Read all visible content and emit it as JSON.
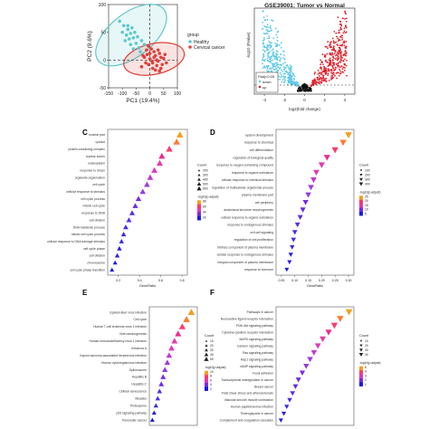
{
  "panels": {
    "A": {
      "label": ""
    },
    "B": {
      "label": ""
    },
    "C": {
      "label": "C"
    },
    "D": {
      "label": "D"
    },
    "E": {
      "label": "E"
    },
    "F": {
      "label": "F"
    }
  },
  "chart_data": [
    {
      "id": "pca",
      "type": "scatter",
      "title": "",
      "xlabel": "PC1 (19.4%)",
      "ylabel": "PC2 (9.6%)",
      "xlim": [
        -150,
        100
      ],
      "ylim": [
        -50,
        100
      ],
      "xticks": [
        -150,
        -100,
        -50,
        0,
        50,
        100
      ],
      "yticks": [
        -50,
        0,
        50,
        100
      ],
      "legend": {
        "title": "group",
        "position": "right",
        "entries": [
          {
            "name": "Healthy",
            "color": "#5ec8cc"
          },
          {
            "name": "Cervical cancer",
            "color": "#e0403a"
          }
        ]
      },
      "series": [
        {
          "name": "Healthy",
          "color": "#5ec8cc",
          "points": [
            [
              -110,
              70
            ],
            [
              -95,
              62
            ],
            [
              -80,
              55
            ],
            [
              -70,
              48
            ],
            [
              -60,
              40
            ],
            [
              -85,
              45
            ],
            [
              -100,
              50
            ],
            [
              -75,
              38
            ],
            [
              -65,
              58
            ],
            [
              -55,
              50
            ],
            [
              -90,
              35
            ],
            [
              -50,
              30
            ],
            [
              -45,
              42
            ],
            [
              -70,
              28
            ],
            [
              -40,
              22
            ],
            [
              -60,
              20
            ],
            [
              -30,
              35
            ],
            [
              -80,
              62
            ],
            [
              -35,
              15
            ],
            [
              -20,
              28
            ]
          ]
        },
        {
          "name": "Cervical cancer",
          "color": "#e0403a",
          "points": [
            [
              -20,
              5
            ],
            [
              -10,
              10
            ],
            [
              0,
              2
            ],
            [
              10,
              -5
            ],
            [
              20,
              8
            ],
            [
              30,
              -2
            ],
            [
              40,
              5
            ],
            [
              15,
              15
            ],
            [
              -5,
              -8
            ],
            [
              25,
              -10
            ],
            [
              35,
              12
            ],
            [
              5,
              20
            ],
            [
              -15,
              -5
            ],
            [
              45,
              -8
            ],
            [
              50,
              3
            ],
            [
              10,
              -15
            ],
            [
              0,
              12
            ],
            [
              20,
              -18
            ],
            [
              -25,
              8
            ],
            [
              30,
              18
            ],
            [
              40,
              -15
            ],
            [
              55,
              10
            ],
            [
              -5,
              25
            ],
            [
              15,
              5
            ],
            [
              25,
              0
            ],
            [
              8,
              -2
            ],
            [
              -30,
              -12
            ],
            [
              60,
              -5
            ],
            [
              35,
              -20
            ],
            [
              -12,
              18
            ]
          ]
        }
      ]
    },
    {
      "id": "volcano",
      "type": "scatter",
      "title": "GSE39001: Tumor vs Normal",
      "xlabel": "log2(fold change)",
      "ylabel": "-log10 (Pvalue)",
      "xticks": [
        -4,
        -2,
        0,
        2,
        4
      ],
      "legend": {
        "position": "bottom-left",
        "entries": [
          {
            "name": "Padj<0.05",
            "color": "#ffffff"
          },
          {
            "name": "down",
            "color": "#5ec8e8"
          },
          {
            "name": "up",
            "color": "#e0202a"
          }
        ]
      }
    },
    {
      "id": "go_bp_c",
      "type": "scatter",
      "xlabel": "GeneRatio",
      "xticks": [
        "0.2",
        "0.4",
        "0.6",
        "0.8"
      ],
      "xlim": [
        0.1,
        0.85
      ],
      "legend_titles": [
        "Count",
        "-log10(p.adjust)"
      ],
      "count_values": [
        "200",
        "300",
        "400",
        "500",
        "600"
      ],
      "color_values": [
        "80",
        "60",
        "40",
        "20"
      ],
      "terms": [
        "nuclear part",
        "cytosol",
        "protein-containing complex",
        "nuclear lumen",
        "nucleoplasm",
        "response to stress",
        "organelle organization",
        "cell cycle",
        "cellular response to stimulus",
        "cell cycle process",
        "mitotic cell cycle",
        "response to DNA",
        "cell division",
        "DNA metabolic process",
        "mitotic cell cycle process",
        "cellular response to DNA damage stimulus",
        "cell cycle phase",
        "cell division",
        "chromosome",
        "cell cycle phase transition"
      ],
      "x": [
        0.78,
        0.75,
        0.68,
        0.61,
        0.59,
        0.54,
        0.5,
        0.47,
        0.43,
        0.39,
        0.36,
        0.33,
        0.3,
        0.27,
        0.25,
        0.23,
        0.21,
        0.19,
        0.17,
        0.14
      ],
      "colors": [
        "#f2a020",
        "#ff7a30",
        "#ff3a6a",
        "#f02a90",
        "#e83aa8",
        "#e03ab8",
        "#c03ad0",
        "#a03ae0",
        "#8f3ae8",
        "#7a2ae8",
        "#6a2ae8",
        "#5a2af0",
        "#5a2af0",
        "#4a2af0",
        "#3a2af0",
        "#3a2af0",
        "#2a1af0",
        "#2a1af0",
        "#1a1af0",
        "#1a1af0"
      ]
    },
    {
      "id": "go_bp_d",
      "type": "scatter",
      "xlabel": "GeneRatio",
      "xticks": [
        "0.05",
        "0.10",
        "0.15",
        "0.20",
        "0.25",
        "0.30"
      ],
      "xlim": [
        0.03,
        0.32
      ],
      "legend_titles": [
        "Count",
        "-log10(p.adjust)"
      ],
      "count_values": [
        "100",
        "200",
        "300",
        "400"
      ],
      "color_values": [
        "25",
        "20",
        "15",
        "10",
        "5"
      ],
      "terms": [
        "system development",
        "response to chemical",
        "cell differentiation",
        "regulation of biological quality",
        "response to oxygen-containing compound",
        "response to organic substance",
        "cellular response to chemical stimulus",
        "regulation of multicellular organismal process",
        "plasma membrane part",
        "cell periphery",
        "anatomical structure morphogenesis",
        "cellular response to organic substance",
        "response to endogenous stimulus",
        "cell-cell signaling",
        "regulation of cell proliferation",
        "intrinsic component of plasma membrane",
        "cellular response to endogenous stimulus",
        "integral component of plasma membrane",
        "response to hormone"
      ],
      "x": [
        0.3,
        0.28,
        0.25,
        0.22,
        0.2,
        0.18,
        0.17,
        0.16,
        0.15,
        0.14,
        0.13,
        0.12,
        0.11,
        0.1,
        0.095,
        0.09,
        0.085,
        0.08,
        0.07
      ],
      "colors": [
        "#f2a020",
        "#ff7a30",
        "#ff3a6a",
        "#f02a90",
        "#e83aa8",
        "#e03ab8",
        "#c03ad0",
        "#a03ae0",
        "#8f3ae8",
        "#7a2ae8",
        "#6a2ae8",
        "#5a2af0",
        "#5a2af0",
        "#4a2af0",
        "#3a2af0",
        "#3a2af0",
        "#2a1af0",
        "#2a1af0",
        "#1a1af0"
      ]
    },
    {
      "id": "kegg_e",
      "type": "scatter",
      "xlabel": "GeneRatio",
      "legend_titles": [
        "Count",
        "-log10(p.adjust)"
      ],
      "count_values": [
        "10",
        "20",
        "30",
        "40",
        "50"
      ],
      "color_values": [
        "10",
        "8",
        "6",
        "4",
        "2"
      ],
      "terms": [
        "Epstein-Barr virus infection",
        "Cell cycle",
        "Human T-cell leukemia virus 1 infection",
        "Viral carcinogenesis",
        "Human immunodeficiency virus 1 infection",
        "Influenza A",
        "Kaposi sarcoma-associated herpesvirus infection",
        "Human cytomegalovirus infection",
        "Spliceosome",
        "Hepatitis B",
        "Hepatitis C",
        "Cellular senescence",
        "Measles",
        "Proteasome",
        "p53 signaling pathway",
        "Pancreatic cancer"
      ],
      "x": [
        0.8,
        0.72,
        0.65,
        0.58,
        0.52,
        0.47,
        0.43,
        0.4,
        0.36,
        0.33,
        0.3,
        0.27,
        0.24,
        0.21,
        0.18,
        0.15
      ],
      "colors": [
        "#f2a020",
        "#ff7a30",
        "#ff3a6a",
        "#f02a90",
        "#e83aa8",
        "#e03ab8",
        "#c03ad0",
        "#a03ae0",
        "#8f3ae8",
        "#7a2ae8",
        "#6a2ae8",
        "#5a2af0",
        "#4a2af0",
        "#3a2af0",
        "#2a1af0",
        "#1a1af0"
      ]
    },
    {
      "id": "kegg_f",
      "type": "scatter",
      "xlabel": "GeneRatio",
      "legend_titles": [
        "Count",
        "-log10(p.adjust)"
      ],
      "count_values": [
        "10",
        "20",
        "30",
        "40"
      ],
      "color_values": [
        "5",
        "4",
        "3",
        "2",
        "1"
      ],
      "terms": [
        "Pathways in cancer",
        "Neuroactive ligand-receptor interaction",
        "PI3K-Akt signaling pathway",
        "Cytokine-cytokine receptor interaction",
        "MAPK signaling pathway",
        "Calcium signaling pathway",
        "Ras signaling pathway",
        "Rap1 signaling pathway",
        "cAMP signaling pathway",
        "Focal adhesion",
        "Transcriptional misregulation in cancer",
        "Breast cancer",
        "Fluid shear stress and atherosclerosis",
        "Vascular smooth muscle contraction",
        "Human papillomavirus infection",
        "Proteoglycans in cancer",
        "Complement and coagulation cascades"
      ],
      "x": [
        0.85,
        0.76,
        0.7,
        0.64,
        0.58,
        0.53,
        0.49,
        0.45,
        0.41,
        0.37,
        0.33,
        0.3,
        0.27,
        0.24,
        0.21,
        0.18,
        0.15
      ],
      "colors": [
        "#f2a020",
        "#ff7a30",
        "#ff3a6a",
        "#f02a90",
        "#e83aa8",
        "#e03ab8",
        "#c03ad0",
        "#a03ae0",
        "#8f3ae8",
        "#7a2ae8",
        "#6a2ae8",
        "#5a2af0",
        "#5a2af0",
        "#4a2af0",
        "#3a2af0",
        "#2a1af0",
        "#1a1af0"
      ]
    }
  ]
}
